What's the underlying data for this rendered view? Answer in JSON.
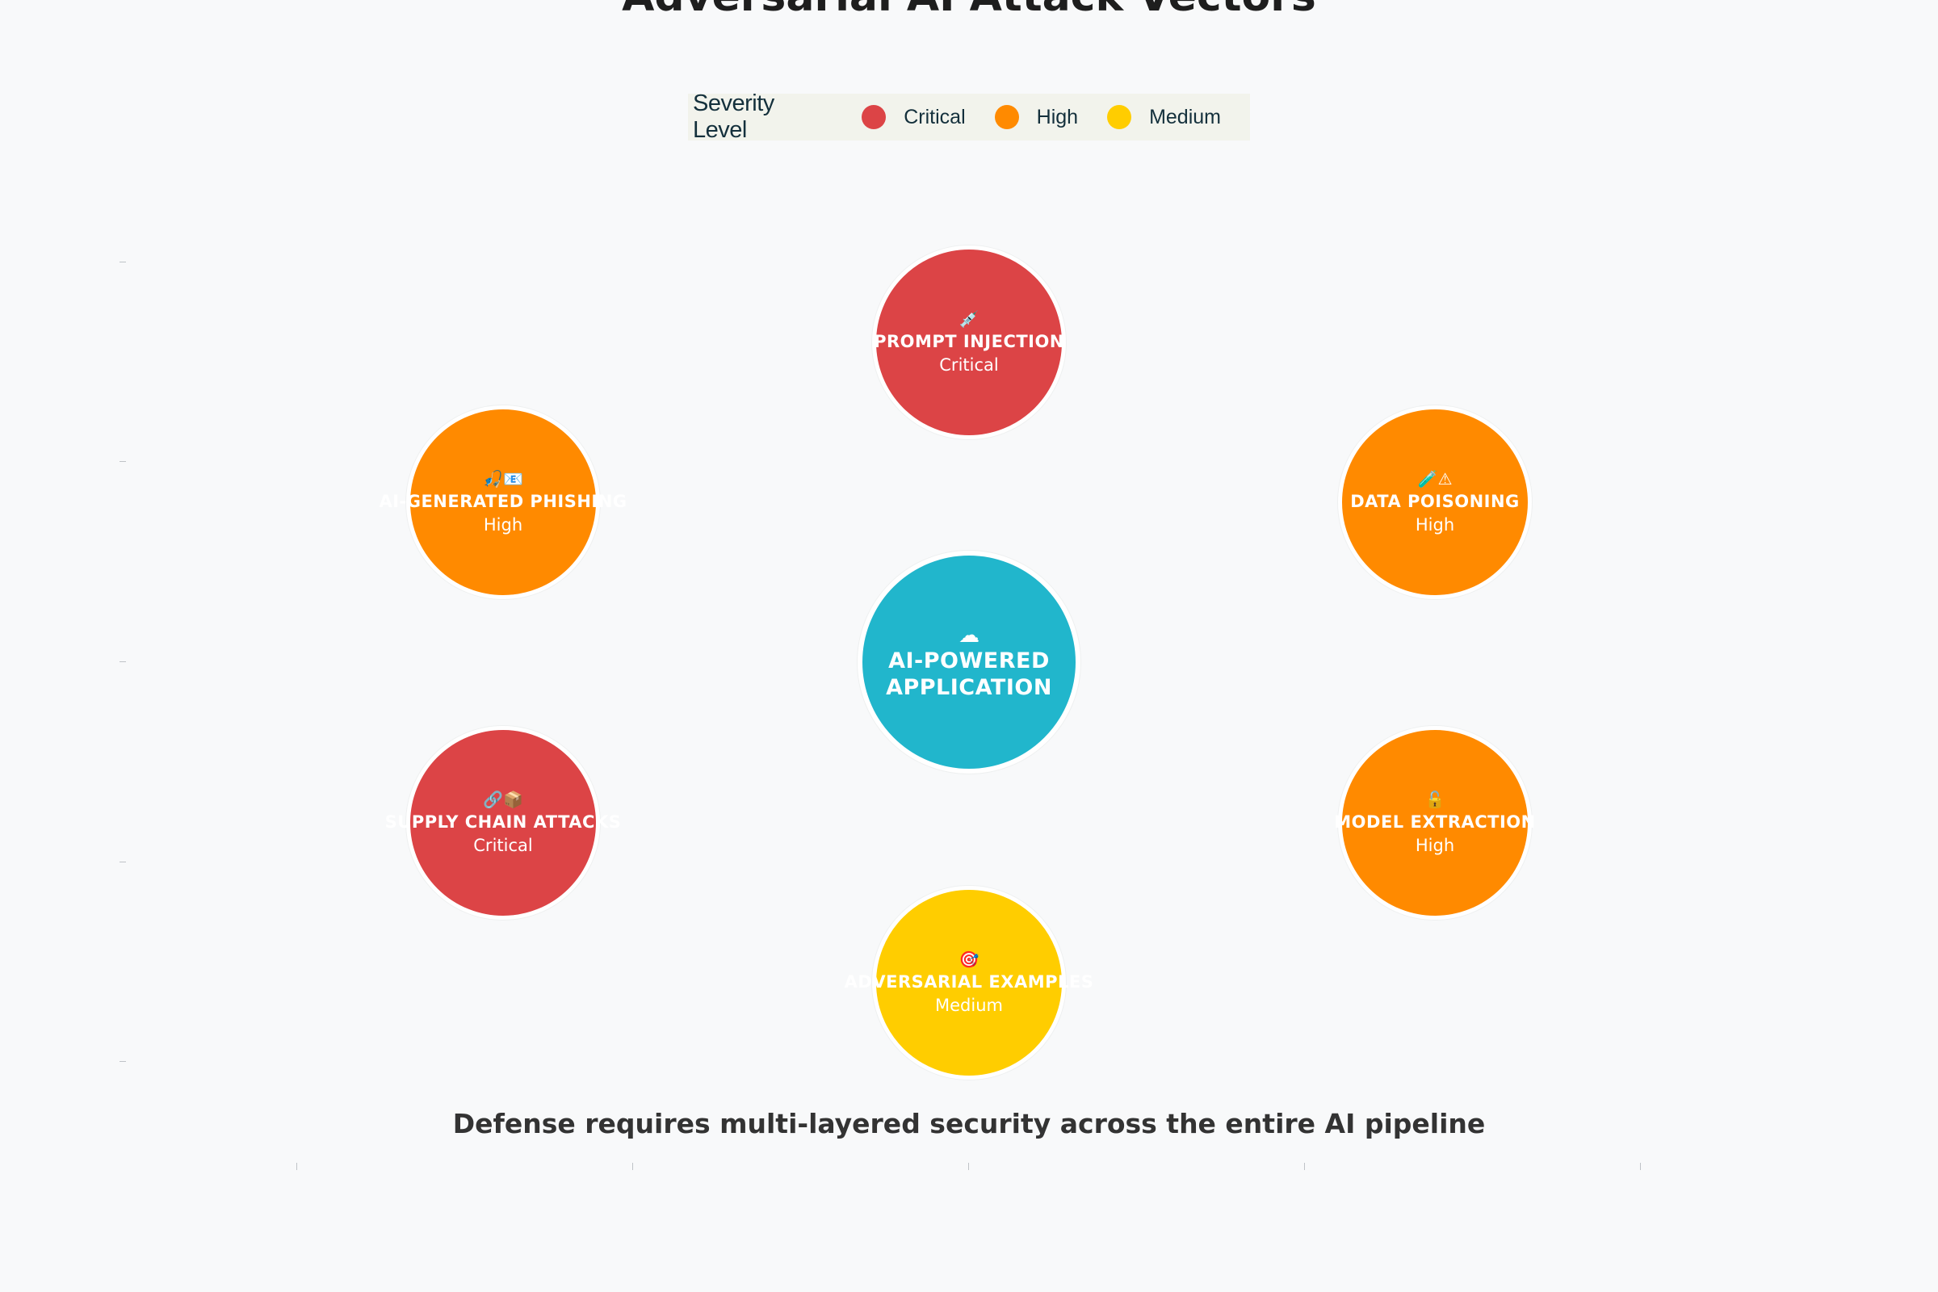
{
  "title": "Adversarial AI Attack Vectors",
  "legend": {
    "title": "Severity Level",
    "items": [
      {
        "label": "Critical",
        "color": "#dc4446"
      },
      {
        "label": "High",
        "color": "#ff8a00"
      },
      {
        "label": "Medium",
        "color": "#ffcd00"
      }
    ]
  },
  "hub": {
    "icon": "☁",
    "line1": "AI-POWERED",
    "line2": "APPLICATION",
    "color": "#21b6cc"
  },
  "vectors": [
    {
      "icon": "💉",
      "label": "PROMPT INJECTION",
      "severity": "Critical",
      "color": "#dc4446"
    },
    {
      "icon": "🧪⚠",
      "label": "DATA POISONING",
      "severity": "High",
      "color": "#ff8a00"
    },
    {
      "icon": "🔓",
      "label": "MODEL EXTRACTION",
      "severity": "High",
      "color": "#ff8a00"
    },
    {
      "icon": "🎯",
      "label": "ADVERSARIAL EXAMPLES",
      "severity": "Medium",
      "color": "#ffcd00"
    },
    {
      "icon": "🔗📦",
      "label": "SUPPLY CHAIN ATTACKS",
      "severity": "Critical",
      "color": "#dc4446"
    },
    {
      "icon": "🎣📧",
      "label": "AI-GENERATED PHISHING",
      "severity": "High",
      "color": "#ff8a00"
    }
  ],
  "footer": "Defense requires multi-layered security across the entire AI pipeline"
}
